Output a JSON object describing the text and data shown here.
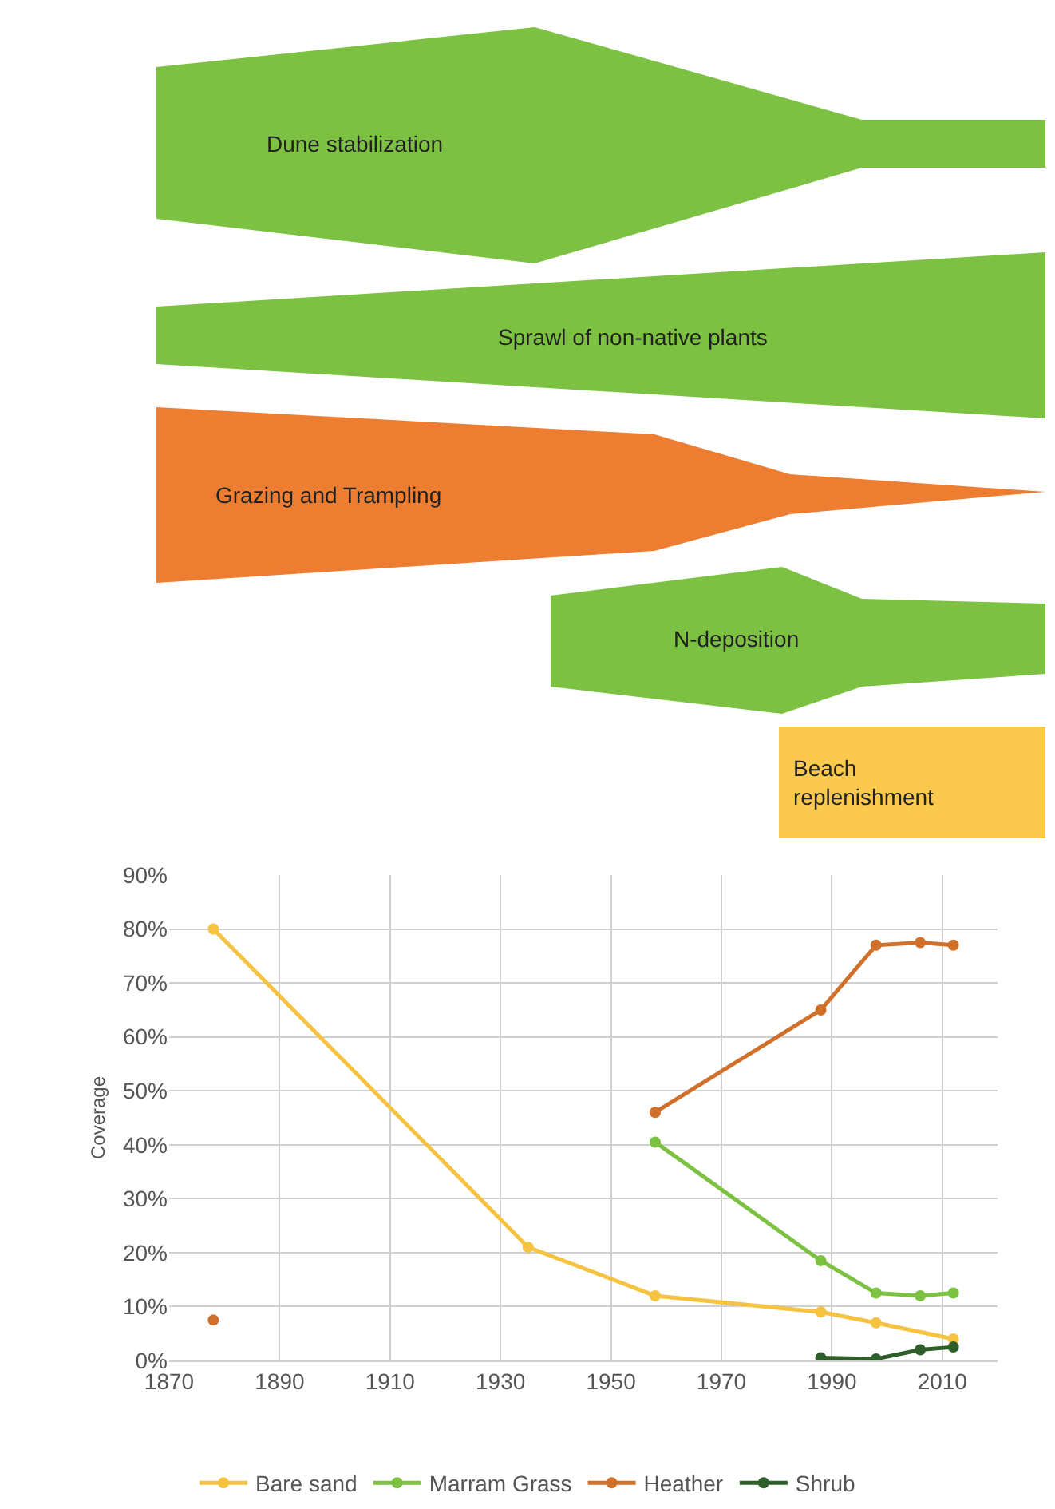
{
  "chart_data": [
    {
      "type": "other",
      "annotations": [
        "Dune stabilization",
        "Sprawl of non-native plants",
        "Grazing and Trampling",
        "N-deposition",
        "Beach\nreplenishment"
      ]
    },
    {
      "type": "line",
      "ylabel": "Coverage",
      "xlim": [
        1870,
        2020
      ],
      "xticks": [
        1870,
        1890,
        1910,
        1930,
        1950,
        1970,
        1990,
        2010
      ],
      "ylim": [
        0,
        90
      ],
      "yticks": [
        {
          "value": 0,
          "label": "0%"
        },
        {
          "value": 10,
          "label": "10%"
        },
        {
          "value": 20,
          "label": "20%"
        },
        {
          "value": 30,
          "label": "30%"
        },
        {
          "value": 40,
          "label": "40%"
        },
        {
          "value": 50,
          "label": "50%"
        },
        {
          "value": 60,
          "label": "60%"
        },
        {
          "value": 70,
          "label": "70%"
        },
        {
          "value": 80,
          "label": "80%"
        },
        {
          "value": 90,
          "label": "90%"
        }
      ],
      "grid": true,
      "legend": "bottom",
      "marker": "circle",
      "series": [
        {
          "name": "Bare sand",
          "color": "#f5c242",
          "x": [
            1878,
            1935,
            1958,
            1988,
            1998,
            2012
          ],
          "values": [
            80,
            21,
            12,
            9,
            7,
            4
          ]
        },
        {
          "name": "Marram Grass",
          "color": "#7cc142",
          "x": [
            1958,
            1988,
            1998,
            2006,
            2012
          ],
          "values": [
            40.5,
            18.5,
            12.5,
            12,
            12.5
          ]
        },
        {
          "name": "Heather",
          "color": "#d0702a",
          "x": [
            1878,
            1918,
            1958,
            1988,
            1998,
            2006,
            2012
          ],
          "values": [
            7.5,
            null,
            46,
            65,
            77,
            77.5,
            77
          ]
        },
        {
          "name": "Shrub",
          "color": "#2e5e2a",
          "x": [
            1988,
            1998,
            2006,
            2012
          ],
          "values": [
            0.5,
            0.3,
            2,
            2.5
          ]
        }
      ]
    }
  ]
}
